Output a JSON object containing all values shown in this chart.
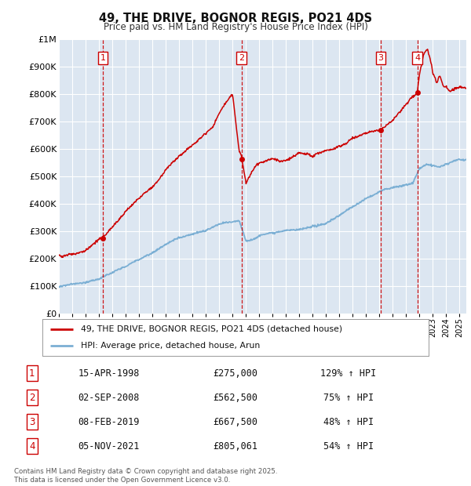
{
  "title": "49, THE DRIVE, BOGNOR REGIS, PO21 4DS",
  "subtitle": "Price paid vs. HM Land Registry's House Price Index (HPI)",
  "ylim": [
    0,
    1000000
  ],
  "yticks": [
    0,
    100000,
    200000,
    300000,
    400000,
    500000,
    600000,
    700000,
    800000,
    900000,
    1000000
  ],
  "ytick_labels": [
    "£0",
    "£100K",
    "£200K",
    "£300K",
    "£400K",
    "£500K",
    "£600K",
    "£700K",
    "£800K",
    "£900K",
    "£1M"
  ],
  "xlim_start": 1995.0,
  "xlim_end": 2025.5,
  "bg_color": "#dce6f1",
  "grid_color": "#ffffff",
  "sale_line_color": "#cc0000",
  "hpi_line_color": "#7bafd4",
  "dashed_color": "#cc0000",
  "transactions": [
    {
      "num": 1,
      "date_label": "15-APR-1998",
      "year": 1998.29,
      "price": 275000,
      "pct": "129%"
    },
    {
      "num": 2,
      "date_label": "02-SEP-2008",
      "year": 2008.67,
      "price": 562500,
      "pct": "75%"
    },
    {
      "num": 3,
      "date_label": "08-FEB-2019",
      "year": 2019.1,
      "price": 667500,
      "pct": "48%"
    },
    {
      "num": 4,
      "date_label": "05-NOV-2021",
      "year": 2021.84,
      "price": 805061,
      "pct": "54%"
    }
  ],
  "legend_line1": "49, THE DRIVE, BOGNOR REGIS, PO21 4DS (detached house)",
  "legend_line2": "HPI: Average price, detached house, Arun",
  "footer": "Contains HM Land Registry data © Crown copyright and database right 2025.\nThis data is licensed under the Open Government Licence v3.0."
}
